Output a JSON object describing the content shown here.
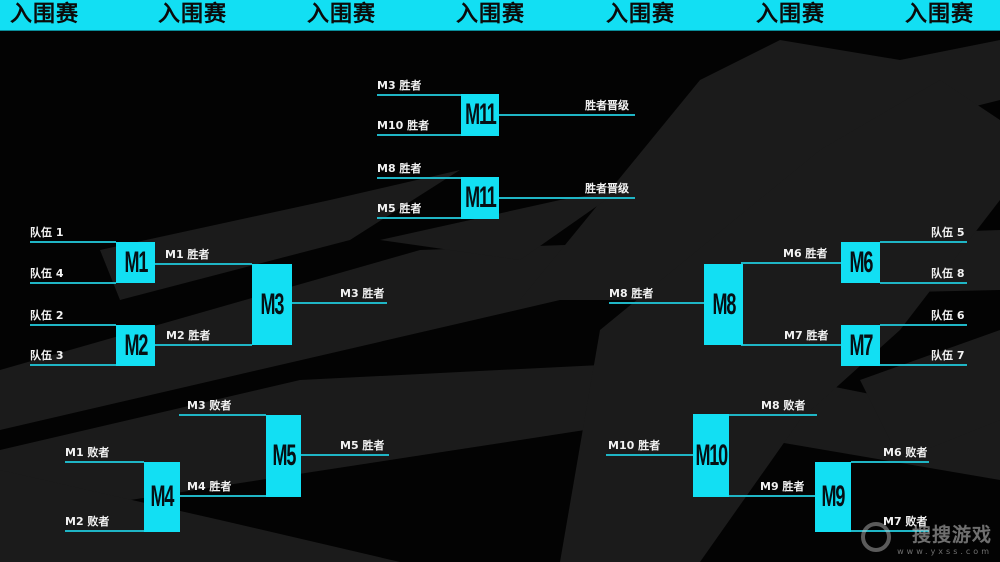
{
  "header": {
    "banner_text": [
      "入围赛",
      "入围赛",
      "入围赛",
      "入围赛",
      "入围赛",
      "入围赛",
      "入围赛"
    ]
  },
  "colors": {
    "accent": "#12dff3",
    "line": "#1fb5c5",
    "background": "#030303",
    "shapes": "#1c1c1c"
  },
  "matches": [
    {
      "id": "M11",
      "inputs": [
        "M3 胜者",
        "M10 胜者"
      ],
      "output": "胜者晋级"
    },
    {
      "id": "M11",
      "inputs": [
        "M8 胜者",
        "M5 胜者"
      ],
      "output": "胜者晋级"
    },
    {
      "id": "M1",
      "inputs": [
        "队伍 1",
        "队伍 4"
      ],
      "output": "M1 胜者"
    },
    {
      "id": "M2",
      "inputs": [
        "队伍 2",
        "队伍 3"
      ],
      "output": "M2 胜者"
    },
    {
      "id": "M3",
      "inputs": [],
      "output": "M3 胜者"
    },
    {
      "id": "M4",
      "inputs": [
        "M1 败者",
        "M2 败者"
      ],
      "output": "M4 胜者"
    },
    {
      "id": "M5",
      "inputs": [
        "M3 败者"
      ],
      "output": "M5 胜者"
    },
    {
      "id": "M6",
      "inputs": [
        "队伍 5",
        "队伍 8"
      ],
      "output": "M6 胜者"
    },
    {
      "id": "M7",
      "inputs": [
        "队伍 6",
        "队伍 7"
      ],
      "output": "M7 胜者"
    },
    {
      "id": "M8",
      "inputs": [],
      "output": "M8 胜者"
    },
    {
      "id": "M9",
      "inputs": [
        "M6 败者",
        "M7 败者"
      ],
      "output": "M9 胜者"
    },
    {
      "id": "M10",
      "inputs": [
        "M8 败者"
      ],
      "output": "M10 胜者"
    }
  ],
  "watermark": {
    "name": "搜搜游戏",
    "url": "www.yxss.com"
  }
}
